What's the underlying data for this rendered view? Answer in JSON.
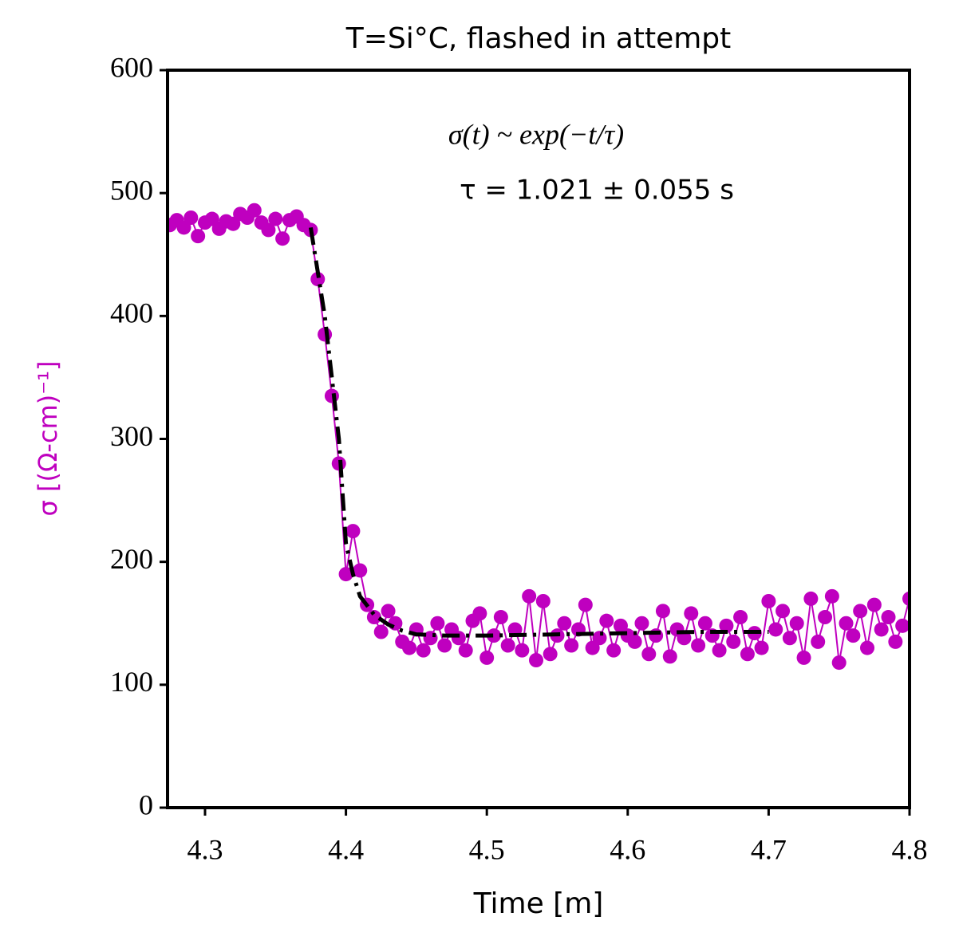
{
  "chart_data": {
    "type": "line",
    "title": "T=Si°C, flashed in attempt",
    "xlabel": "Time [m]",
    "ylabel": "σ [(Ω-cm)⁻¹]",
    "ylabel_color": "#bf00bf",
    "annotations": [
      "σ(t) ~ exp(−t/τ)",
      "τ = 1.021 ± 0.055 s"
    ],
    "xlim": [
      4.2734,
      4.8
    ],
    "ylim": [
      0,
      600
    ],
    "xticks": [
      4.3,
      4.4,
      4.5,
      4.6,
      4.7,
      4.8
    ],
    "yticks": [
      0,
      100,
      200,
      300,
      400,
      500,
      600
    ],
    "series": [
      {
        "color": "#bf00bf",
        "marker": "o",
        "linestyle": "-",
        "x": [
          4.275,
          4.28,
          4.285,
          4.29,
          4.295,
          4.3,
          4.305,
          4.31,
          4.315,
          4.32,
          4.325,
          4.33,
          4.335,
          4.34,
          4.345,
          4.35,
          4.355,
          4.36,
          4.365,
          4.37,
          4.375,
          4.38,
          4.385,
          4.39,
          4.395,
          4.4,
          4.405,
          4.41,
          4.415,
          4.42,
          4.425,
          4.43,
          4.435,
          4.44,
          4.445,
          4.45,
          4.455,
          4.46,
          4.465,
          4.47,
          4.475,
          4.48,
          4.485,
          4.49,
          4.495,
          4.5,
          4.505,
          4.51,
          4.515,
          4.52,
          4.525,
          4.53,
          4.535,
          4.54,
          4.545,
          4.55,
          4.555,
          4.56,
          4.565,
          4.57,
          4.575,
          4.58,
          4.585,
          4.59,
          4.595,
          4.6,
          4.605,
          4.61,
          4.615,
          4.62,
          4.625,
          4.63,
          4.635,
          4.64,
          4.645,
          4.65,
          4.655,
          4.66,
          4.665,
          4.67,
          4.675,
          4.68,
          4.685,
          4.69,
          4.695,
          4.7,
          4.705,
          4.71,
          4.715,
          4.72,
          4.725,
          4.73,
          4.735,
          4.74,
          4.745,
          4.75,
          4.755,
          4.76,
          4.765,
          4.77,
          4.775,
          4.78,
          4.785,
          4.79,
          4.795,
          4.8
        ],
        "values": [
          474,
          478,
          472,
          480,
          465,
          476,
          479,
          471,
          477,
          475,
          483,
          480,
          486,
          476,
          470,
          479,
          463,
          478,
          481,
          474,
          470,
          430,
          385,
          335,
          280,
          190,
          225,
          193,
          165,
          155,
          143,
          160,
          150,
          135,
          130,
          145,
          128,
          138,
          150,
          132,
          145,
          138,
          128,
          152,
          158,
          122,
          140,
          155,
          132,
          145,
          128,
          172,
          120,
          168,
          125,
          140,
          150,
          132,
          145,
          165,
          130,
          138,
          152,
          128,
          148,
          140,
          135,
          150,
          125,
          140,
          160,
          123,
          145,
          138,
          158,
          132,
          150,
          140,
          128,
          148,
          135,
          155,
          125,
          142,
          130,
          168,
          145,
          160,
          138,
          150,
          122,
          170,
          135,
          155,
          172,
          118,
          150,
          140,
          160,
          130,
          165,
          145,
          155,
          135,
          148,
          170
        ]
      },
      {
        "color": "#000000",
        "marker": "none",
        "linestyle": "-.",
        "x": [
          4.375,
          4.385,
          4.395,
          4.4,
          4.405,
          4.41,
          4.42,
          4.43,
          4.44,
          4.45,
          4.47,
          4.5,
          4.55,
          4.6,
          4.65,
          4.7
        ],
        "values": [
          472,
          400,
          300,
          215,
          190,
          172,
          157,
          149,
          144,
          141,
          140,
          140,
          141,
          142,
          143,
          143
        ]
      }
    ]
  }
}
